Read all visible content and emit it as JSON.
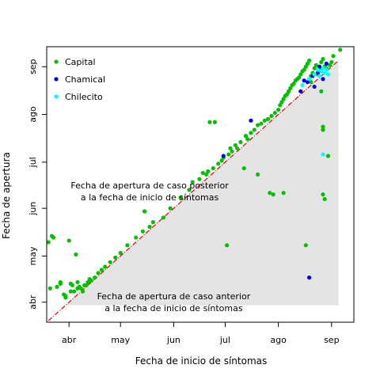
{
  "chart_data": {
    "type": "scatter",
    "title": "",
    "xlabel": "Fecha de inicio de síntomas",
    "ylabel": "Fecha de apertura",
    "x_unit": "date (2020)",
    "y_unit": "date (2020)",
    "xlim": [
      "2020-03-19",
      "2020-09-14"
    ],
    "ylim": [
      "2020-03-19",
      "2020-09-14"
    ],
    "x_ticks": [
      {
        "date": "2020-04-01",
        "label": "abr"
      },
      {
        "date": "2020-05-01",
        "label": "may"
      },
      {
        "date": "2020-06-01",
        "label": "jun"
      },
      {
        "date": "2020-07-01",
        "label": "jul"
      },
      {
        "date": "2020-08-01",
        "label": "ago"
      },
      {
        "date": "2020-09-01",
        "label": "sep"
      }
    ],
    "y_ticks": [
      {
        "date": "2020-04-01",
        "label": "abr"
      },
      {
        "date": "2020-05-01",
        "label": "may"
      },
      {
        "date": "2020-06-01",
        "label": "jun"
      },
      {
        "date": "2020-07-01",
        "label": "jul"
      },
      {
        "date": "2020-08-01",
        "label": "ago"
      },
      {
        "date": "2020-09-01",
        "label": "sep"
      }
    ],
    "grid": false,
    "legend_position": "top-left",
    "reference_line": {
      "style": "dashed",
      "color": "#dd0000",
      "from": "2020-03-20",
      "to": "2020-09-05"
    },
    "shaded_region": {
      "color": "#e4e4e4",
      "x_from": "2020-03-30",
      "x_to": "2020-09-05",
      "y_floor": "2020-03-30"
    },
    "annotations": [
      {
        "lines": [
          "Fecha de apertura de caso posterior",
          "a la fecha de inicio de síntomas"
        ],
        "x": "2020-05-18",
        "y": "2020-06-14"
      },
      {
        "lines": [
          "Fecha de apertura de caso anterior",
          "a la fecha de inicio de síntomas"
        ],
        "x": "2020-06-01",
        "y": "2020-04-03"
      }
    ],
    "series": [
      {
        "name": "Capital",
        "color": "#00c000",
        "points": [
          [
            "2020-03-20",
            "2020-05-10"
          ],
          [
            "2020-03-21",
            "2020-04-10"
          ],
          [
            "2020-03-22",
            "2020-05-14"
          ],
          [
            "2020-03-23",
            "2020-05-13"
          ],
          [
            "2020-03-25",
            "2020-04-11"
          ],
          [
            "2020-03-27",
            "2020-04-13"
          ],
          [
            "2020-03-27",
            "2020-04-14"
          ],
          [
            "2020-03-29",
            "2020-04-06"
          ],
          [
            "2020-03-30",
            "2020-04-05"
          ],
          [
            "2020-03-30",
            "2020-04-04"
          ],
          [
            "2020-04-01",
            "2020-05-11"
          ],
          [
            "2020-04-02",
            "2020-04-13"
          ],
          [
            "2020-04-02",
            "2020-04-08"
          ],
          [
            "2020-04-03",
            "2020-04-12"
          ],
          [
            "2020-04-04",
            "2020-04-08"
          ],
          [
            "2020-04-05",
            "2020-05-02"
          ],
          [
            "2020-04-06",
            "2020-04-10"
          ],
          [
            "2020-04-06",
            "2020-04-14"
          ],
          [
            "2020-04-07",
            "2020-04-11"
          ],
          [
            "2020-04-08",
            "2020-04-10"
          ],
          [
            "2020-04-09",
            "2020-04-08"
          ],
          [
            "2020-04-10",
            "2020-04-12"
          ],
          [
            "2020-04-11",
            "2020-04-12"
          ],
          [
            "2020-04-12",
            "2020-04-14"
          ],
          [
            "2020-04-13",
            "2020-04-16"
          ],
          [
            "2020-04-14",
            "2020-04-15"
          ],
          [
            "2020-04-16",
            "2020-04-17"
          ],
          [
            "2020-04-18",
            "2020-04-20"
          ],
          [
            "2020-04-20",
            "2020-04-22"
          ],
          [
            "2020-04-22",
            "2020-04-24"
          ],
          [
            "2020-04-25",
            "2020-04-27"
          ],
          [
            "2020-04-28",
            "2020-04-30"
          ],
          [
            "2020-05-01",
            "2020-05-03"
          ],
          [
            "2020-05-05",
            "2020-05-08"
          ],
          [
            "2020-05-10",
            "2020-05-13"
          ],
          [
            "2020-05-14",
            "2020-05-17"
          ],
          [
            "2020-05-15",
            "2020-05-30"
          ],
          [
            "2020-05-18",
            "2020-05-20"
          ],
          [
            "2020-05-20",
            "2020-05-23"
          ],
          [
            "2020-05-26",
            "2020-05-26"
          ],
          [
            "2020-05-30",
            "2020-06-01"
          ],
          [
            "2020-06-05",
            "2020-06-08"
          ],
          [
            "2020-06-10",
            "2020-06-13"
          ],
          [
            "2020-06-12",
            "2020-06-18"
          ],
          [
            "2020-06-16",
            "2020-06-20"
          ],
          [
            "2020-06-18",
            "2020-06-24"
          ],
          [
            "2020-06-20",
            "2020-06-23"
          ],
          [
            "2020-06-21",
            "2020-06-25"
          ],
          [
            "2020-06-22",
            "2020-07-27"
          ],
          [
            "2020-06-24",
            "2020-06-27"
          ],
          [
            "2020-06-25",
            "2020-07-27"
          ],
          [
            "2020-06-27",
            "2020-06-30"
          ],
          [
            "2020-06-29",
            "2020-07-02"
          ],
          [
            "2020-06-30",
            "2020-07-04"
          ],
          [
            "2020-07-02",
            "2020-05-08"
          ],
          [
            "2020-07-03",
            "2020-07-06"
          ],
          [
            "2020-07-04",
            "2020-07-10"
          ],
          [
            "2020-07-05",
            "2020-07-08"
          ],
          [
            "2020-07-07",
            "2020-07-12"
          ],
          [
            "2020-07-08",
            "2020-07-10"
          ],
          [
            "2020-07-10",
            "2020-07-14"
          ],
          [
            "2020-07-12",
            "2020-06-27"
          ],
          [
            "2020-07-13",
            "2020-07-18"
          ],
          [
            "2020-07-14",
            "2020-07-16"
          ],
          [
            "2020-07-16",
            "2020-07-20"
          ],
          [
            "2020-07-18",
            "2020-07-22"
          ],
          [
            "2020-07-20",
            "2020-07-25"
          ],
          [
            "2020-07-20",
            "2020-06-23"
          ],
          [
            "2020-07-22",
            "2020-07-26"
          ],
          [
            "2020-07-24",
            "2020-07-28"
          ],
          [
            "2020-07-26",
            "2020-07-29"
          ],
          [
            "2020-07-27",
            "2020-06-11"
          ],
          [
            "2020-07-28",
            "2020-07-31"
          ],
          [
            "2020-07-29",
            "2020-06-10"
          ],
          [
            "2020-07-30",
            "2020-08-02"
          ],
          [
            "2020-08-01",
            "2020-08-04"
          ],
          [
            "2020-08-02",
            "2020-08-07"
          ],
          [
            "2020-08-03",
            "2020-08-09"
          ],
          [
            "2020-08-04",
            "2020-08-11"
          ],
          [
            "2020-08-05",
            "2020-08-13"
          ],
          [
            "2020-08-06",
            "2020-08-14"
          ],
          [
            "2020-08-07",
            "2020-08-16"
          ],
          [
            "2020-08-08",
            "2020-08-18"
          ],
          [
            "2020-08-09",
            "2020-08-20"
          ],
          [
            "2020-08-10",
            "2020-08-21"
          ],
          [
            "2020-08-11",
            "2020-08-23"
          ],
          [
            "2020-08-12",
            "2020-08-24"
          ],
          [
            "2020-08-13",
            "2020-08-25"
          ],
          [
            "2020-08-14",
            "2020-08-27"
          ],
          [
            "2020-08-15",
            "2020-08-29"
          ],
          [
            "2020-08-16",
            "2020-08-30"
          ],
          [
            "2020-08-17",
            "2020-09-01"
          ],
          [
            "2020-08-18",
            "2020-09-03"
          ],
          [
            "2020-08-19",
            "2020-09-05"
          ],
          [
            "2020-08-20",
            "2020-08-22"
          ],
          [
            "2020-08-20",
            "2020-08-26"
          ],
          [
            "2020-08-21",
            "2020-08-28"
          ],
          [
            "2020-08-22",
            "2020-08-31"
          ],
          [
            "2020-08-23",
            "2020-09-02"
          ],
          [
            "2020-08-24",
            "2020-08-27"
          ],
          [
            "2020-08-25",
            "2020-08-30"
          ],
          [
            "2020-08-26",
            "2020-09-04"
          ],
          [
            "2020-08-27",
            "2020-09-06"
          ],
          [
            "2020-08-27",
            "2020-06-10"
          ],
          [
            "2020-08-28",
            "2020-09-01"
          ],
          [
            "2020-08-28",
            "2020-06-07"
          ],
          [
            "2020-08-29",
            "2020-08-31"
          ],
          [
            "2020-08-30",
            "2020-07-05"
          ],
          [
            "2020-08-31",
            "2020-09-02"
          ],
          [
            "2020-09-01",
            "2020-09-04"
          ],
          [
            "2020-09-02",
            "2020-09-08"
          ],
          [
            "2020-08-26",
            "2020-08-16"
          ],
          [
            "2020-08-27",
            "2020-07-24"
          ],
          [
            "2020-08-27",
            "2020-07-22"
          ],
          [
            "2020-08-17",
            "2020-05-08"
          ],
          [
            "2020-08-04",
            "2020-06-11"
          ],
          [
            "2020-09-06",
            "2020-09-12"
          ]
        ]
      },
      {
        "name": "Chamical",
        "color": "#0000ee",
        "points": [
          [
            "2020-06-30",
            "2020-07-05"
          ],
          [
            "2020-07-16",
            "2020-07-28"
          ],
          [
            "2020-08-14",
            "2020-08-16"
          ],
          [
            "2020-08-16",
            "2020-08-23"
          ],
          [
            "2020-08-18",
            "2020-08-22"
          ],
          [
            "2020-08-19",
            "2020-04-17"
          ],
          [
            "2020-08-21",
            "2020-08-26"
          ],
          [
            "2020-08-22",
            "2020-08-19"
          ],
          [
            "2020-08-24",
            "2020-08-28"
          ],
          [
            "2020-08-25",
            "2020-09-01"
          ],
          [
            "2020-08-27",
            "2020-08-24"
          ],
          [
            "2020-08-29",
            "2020-09-03"
          ]
        ]
      },
      {
        "name": "Chilecito",
        "color": "#00ffff",
        "points": [
          [
            "2020-08-15",
            "2020-08-20"
          ],
          [
            "2020-08-19",
            "2020-08-24"
          ],
          [
            "2020-08-22",
            "2020-08-27"
          ],
          [
            "2020-08-24",
            "2020-08-30"
          ],
          [
            "2020-08-25",
            "2020-08-26"
          ],
          [
            "2020-08-26",
            "2020-08-29"
          ],
          [
            "2020-08-27",
            "2020-08-31"
          ],
          [
            "2020-08-28",
            "2020-08-28"
          ],
          [
            "2020-08-29",
            "2020-08-30"
          ],
          [
            "2020-08-30",
            "2020-08-27"
          ],
          [
            "2020-08-27",
            "2020-07-06"
          ]
        ]
      }
    ]
  }
}
